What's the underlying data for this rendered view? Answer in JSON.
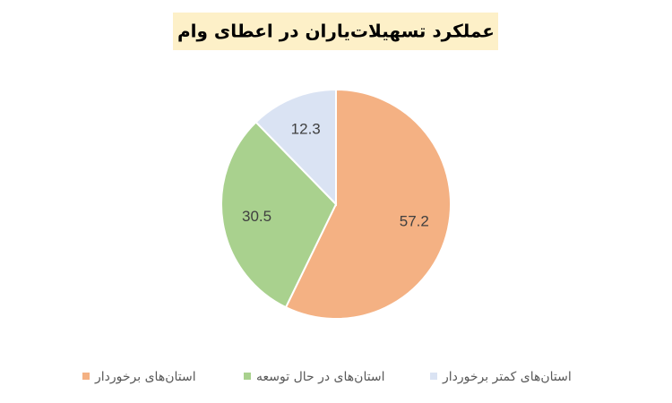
{
  "chart_data": {
    "type": "pie",
    "title": "عملکرد تسهیلات‌یاران در اعطای وام",
    "categories": [
      "استان‌های برخوردار",
      "استان‌های در حال توسعه",
      "استان‌های کمتر برخوردار"
    ],
    "values": [
      57.2,
      30.5,
      12.3
    ],
    "colors": [
      "#f4b183",
      "#a9d18e",
      "#dae3f3"
    ]
  }
}
